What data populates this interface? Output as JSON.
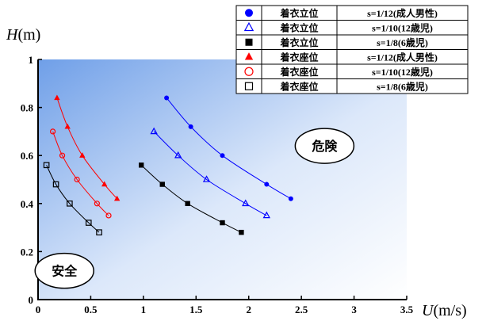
{
  "chart_data": {
    "type": "scatter",
    "ylabel_italic": "H",
    "ylabel_unit": "(m)",
    "xlabel_italic": "U",
    "xlabel_unit": "(m/s)",
    "xlim": [
      0,
      3.5
    ],
    "ylim": [
      0,
      1
    ],
    "xticks": [
      0,
      0.5,
      1,
      1.5,
      2,
      2.5,
      3,
      3.5
    ],
    "xtick_labels": [
      "0",
      "0.5",
      "1",
      "1.5",
      "2",
      "2.5",
      "3",
      "3.5"
    ],
    "yticks": [
      0,
      0.2,
      0.4,
      0.6,
      0.8,
      1
    ],
    "ytick_labels": [
      "0",
      "0.2",
      "0.4",
      "0.6",
      "0.8",
      "1"
    ],
    "legend_position": "top-right",
    "series": [
      {
        "name": "着衣立位",
        "scale": "s=1/12(成人男性)",
        "marker": "circle",
        "filled": true,
        "color": "#0000ff",
        "x": [
          1.22,
          1.45,
          1.75,
          2.17,
          2.4
        ],
        "y": [
          0.84,
          0.72,
          0.6,
          0.48,
          0.42
        ]
      },
      {
        "name": "着衣立位",
        "scale": "s=1/10(12歳児)",
        "marker": "triangle",
        "filled": false,
        "color": "#0000ff",
        "x": [
          1.1,
          1.33,
          1.6,
          1.97,
          2.17
        ],
        "y": [
          0.7,
          0.6,
          0.5,
          0.4,
          0.35
        ]
      },
      {
        "name": "着衣立位",
        "scale": "s=1/8(6歳児)",
        "marker": "square",
        "filled": true,
        "color": "#000000",
        "x": [
          0.98,
          1.18,
          1.42,
          1.75,
          1.93
        ],
        "y": [
          0.56,
          0.48,
          0.4,
          0.32,
          0.28
        ]
      },
      {
        "name": "着衣座位",
        "scale": "s=1/12(成人男性)",
        "marker": "triangle",
        "filled": true,
        "color": "#ff0000",
        "x": [
          0.18,
          0.28,
          0.42,
          0.63,
          0.75
        ],
        "y": [
          0.84,
          0.72,
          0.6,
          0.48,
          0.42
        ]
      },
      {
        "name": "着衣座位",
        "scale": "s=1/10(12歳児)",
        "marker": "circle",
        "filled": false,
        "color": "#ff0000",
        "x": [
          0.14,
          0.23,
          0.37,
          0.56,
          0.67
        ],
        "y": [
          0.7,
          0.6,
          0.5,
          0.4,
          0.35
        ]
      },
      {
        "name": "着衣座位",
        "scale": "s=1/8(6歳児)",
        "marker": "square",
        "filled": false,
        "color": "#000000",
        "x": [
          0.08,
          0.17,
          0.3,
          0.48,
          0.58
        ],
        "y": [
          0.56,
          0.48,
          0.4,
          0.32,
          0.28
        ]
      }
    ],
    "annotations": [
      {
        "text": "危険",
        "x": 2.72,
        "y": 0.64
      },
      {
        "text": "安全",
        "x": 0.25,
        "y": 0.12
      }
    ]
  }
}
